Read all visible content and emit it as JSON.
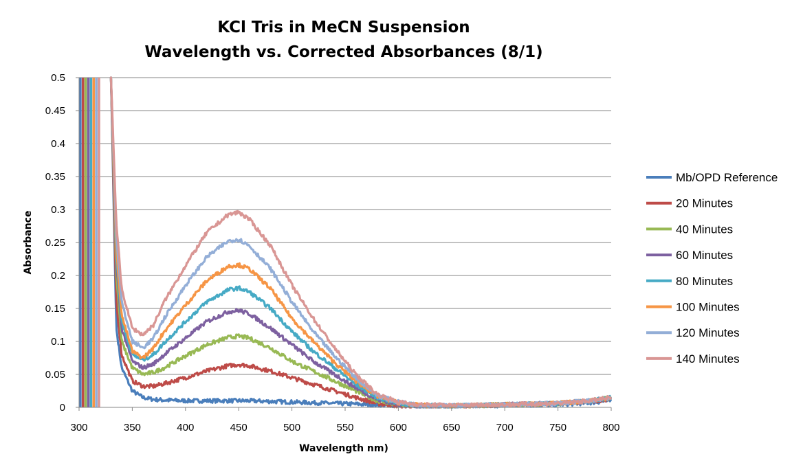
{
  "chart_data": {
    "type": "line",
    "title": "KCl Tris in MeCN Suspension",
    "subtitle": "Wavelength vs. Corrected Absorbances (8/1)",
    "xlabel": "Wavelength nm)",
    "ylabel": "Absorbance",
    "xlim": [
      300,
      800
    ],
    "ylim": [
      0,
      0.5
    ],
    "x_ticks": [
      "300",
      "350",
      "400",
      "450",
      "500",
      "550",
      "600",
      "650",
      "700",
      "750",
      "800"
    ],
    "y_ticks": [
      "0",
      "0.05",
      "0.1",
      "0.15",
      "0.2",
      "0.25",
      "0.3",
      "0.35",
      "0.4",
      "0.45",
      "0.5"
    ],
    "grid": "horizontal",
    "legend_position": "right",
    "x": [
      330,
      335,
      340,
      350,
      360,
      370,
      380,
      400,
      420,
      440,
      450,
      460,
      480,
      500,
      520,
      540,
      560,
      580,
      600,
      620,
      650,
      700,
      750,
      780,
      800
    ],
    "series": [
      {
        "name": "Mb/OPD Reference",
        "color": "#4A7EBB",
        "values": [
          0.5,
          0.12,
          0.06,
          0.025,
          0.015,
          0.012,
          0.011,
          0.01,
          0.01,
          0.01,
          0.01,
          0.01,
          0.009,
          0.008,
          0.007,
          0.006,
          0.005,
          0.004,
          0.003,
          0.002,
          0.002,
          0.003,
          0.004,
          0.007,
          0.01
        ]
      },
      {
        "name": "20 Minutes",
        "color": "#BE4B48",
        "values": [
          0.5,
          0.16,
          0.08,
          0.04,
          0.032,
          0.032,
          0.036,
          0.045,
          0.055,
          0.063,
          0.065,
          0.063,
          0.055,
          0.045,
          0.035,
          0.025,
          0.015,
          0.006,
          0.002,
          0.001,
          0.001,
          0.004,
          0.006,
          0.009,
          0.013
        ]
      },
      {
        "name": "40 Minutes",
        "color": "#98B954",
        "values": [
          0.5,
          0.2,
          0.1,
          0.06,
          0.05,
          0.053,
          0.06,
          0.078,
          0.095,
          0.106,
          0.108,
          0.105,
          0.09,
          0.07,
          0.055,
          0.04,
          0.025,
          0.01,
          0.004,
          0.002,
          0.002,
          0.004,
          0.006,
          0.01,
          0.014
        ]
      },
      {
        "name": "60 Minutes",
        "color": "#7D60A0",
        "values": [
          0.5,
          0.22,
          0.12,
          0.07,
          0.06,
          0.066,
          0.08,
          0.105,
          0.13,
          0.145,
          0.147,
          0.142,
          0.12,
          0.095,
          0.07,
          0.05,
          0.03,
          0.012,
          0.005,
          0.002,
          0.002,
          0.004,
          0.006,
          0.01,
          0.014
        ]
      },
      {
        "name": "80 Minutes",
        "color": "#46AAC5",
        "values": [
          0.5,
          0.23,
          0.13,
          0.08,
          0.072,
          0.08,
          0.098,
          0.13,
          0.16,
          0.178,
          0.181,
          0.175,
          0.15,
          0.115,
          0.085,
          0.06,
          0.035,
          0.015,
          0.006,
          0.003,
          0.002,
          0.004,
          0.006,
          0.01,
          0.015
        ]
      },
      {
        "name": "100 Minutes",
        "color": "#F69545",
        "values": [
          0.5,
          0.24,
          0.14,
          0.085,
          0.075,
          0.09,
          0.115,
          0.155,
          0.192,
          0.214,
          0.216,
          0.21,
          0.18,
          0.135,
          0.1,
          0.068,
          0.04,
          0.017,
          0.007,
          0.003,
          0.002,
          0.004,
          0.006,
          0.01,
          0.015
        ]
      },
      {
        "name": "120 Minutes",
        "color": "#93AED7",
        "values": [
          0.5,
          0.26,
          0.16,
          0.1,
          0.09,
          0.105,
          0.135,
          0.185,
          0.228,
          0.252,
          0.255,
          0.245,
          0.21,
          0.16,
          0.115,
          0.078,
          0.045,
          0.018,
          0.008,
          0.003,
          0.002,
          0.004,
          0.006,
          0.01,
          0.015
        ]
      },
      {
        "name": "140 Minutes",
        "color": "#D99694",
        "values": [
          0.5,
          0.28,
          0.18,
          0.12,
          0.11,
          0.125,
          0.16,
          0.215,
          0.265,
          0.292,
          0.296,
          0.285,
          0.245,
          0.185,
          0.135,
          0.09,
          0.05,
          0.02,
          0.008,
          0.004,
          0.003,
          0.004,
          0.006,
          0.01,
          0.015
        ]
      }
    ]
  }
}
